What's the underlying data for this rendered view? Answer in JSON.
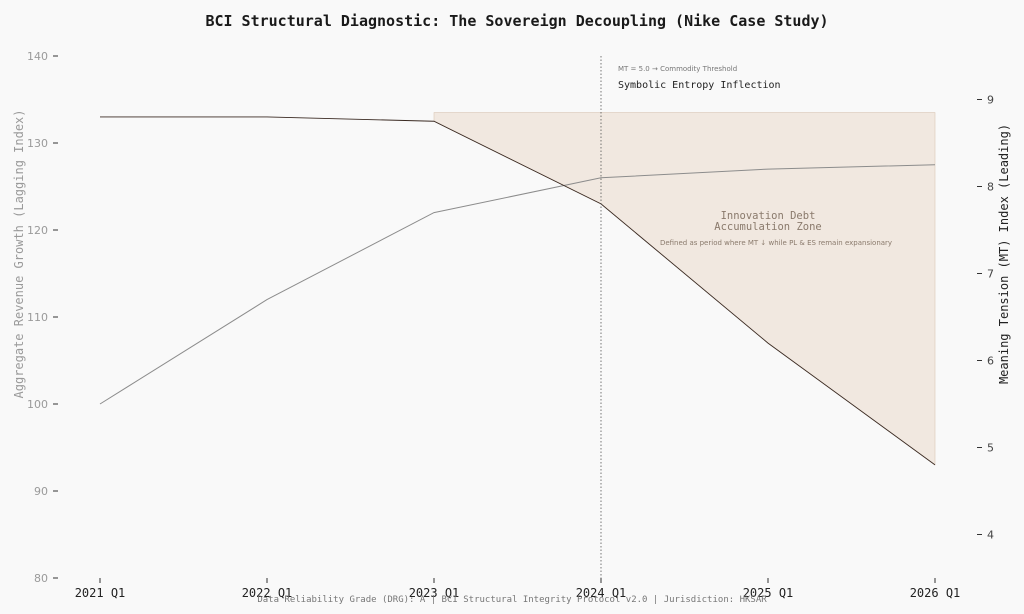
{
  "chart_data": {
    "type": "line",
    "title": "BCI Structural Diagnostic: The Sovereign Decoupling (Nike Case Study)",
    "categories": [
      "2021 Q1",
      "2022 Q1",
      "2023 Q1",
      "2024 Q1",
      "2025 Q1",
      "2026 Q1"
    ],
    "ylabel_left": "Aggregate Revenue Growth (Lagging Index)",
    "ylabel_right": "Meaning Tension (MT) Index (Leading)",
    "ylim_left": [
      80,
      140
    ],
    "yticks_left": [
      80,
      90,
      100,
      110,
      120,
      130,
      140
    ],
    "ylim_right": [
      3.5,
      9.5
    ],
    "yticks_right": [
      4,
      5,
      6,
      7,
      8,
      9
    ],
    "grid": false,
    "series": [
      {
        "axis": "left",
        "values": [
          100,
          112,
          122,
          126,
          127,
          127.5
        ],
        "color": "#8c8c8c"
      },
      {
        "axis": "right",
        "values": [
          8.8,
          8.8,
          8.75,
          7.8,
          6.2,
          4.8
        ],
        "color": "#3a2a22"
      }
    ],
    "threshold_label": "MT = 5.0 → Commodity Threshold",
    "inflection_label": "Symbolic Entropy Inflection",
    "inflection_category": "2024 Q1",
    "zone": {
      "title_line1": "Innovation Debt",
      "title_line2": "Accumulation Zone",
      "subtitle": "Defined as period where MT ↓ while PL & ES remain expansionary",
      "color": "#f1e8e0",
      "edge_color": "#d9c6b5",
      "top_value_right_axis": 8.85,
      "start_category": "2023 Q1",
      "end_category": "2026 Q1"
    },
    "footer": "Data Reliability Grade (DRG): A | BCI Structural Integrity Protocol v2.0 | Jurisdiction: HKSAR"
  }
}
